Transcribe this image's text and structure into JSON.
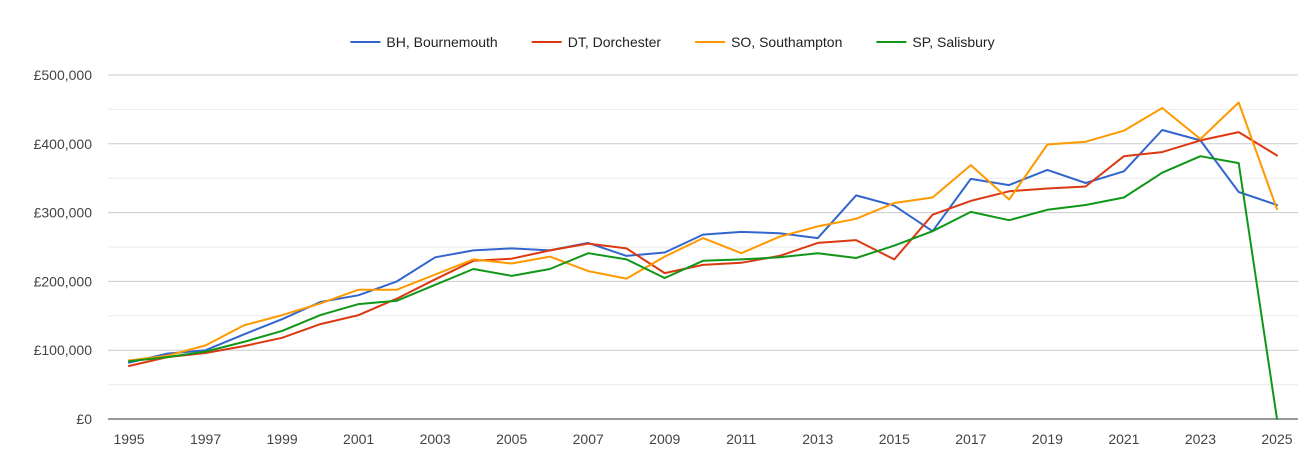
{
  "chart_data": {
    "type": "line",
    "x": [
      1995,
      1996,
      1997,
      1998,
      1999,
      2000,
      2001,
      2002,
      2003,
      2004,
      2005,
      2006,
      2007,
      2008,
      2009,
      2010,
      2011,
      2012,
      2013,
      2014,
      2015,
      2016,
      2017,
      2018,
      2019,
      2020,
      2021,
      2022,
      2023,
      2024,
      2025
    ],
    "x_tick_labels": [
      "1995",
      "1997",
      "1999",
      "2001",
      "2003",
      "2005",
      "2007",
      "2009",
      "2011",
      "2013",
      "2015",
      "2017",
      "2019",
      "2021",
      "2023",
      "2025"
    ],
    "y_tick_labels": [
      "£0",
      "£100,000",
      "£200,000",
      "£300,000",
      "£400,000",
      "£500,000"
    ],
    "ylim": [
      0,
      500000
    ],
    "grid": true,
    "legend_position": "top",
    "series": [
      {
        "name": "BH, Bournemouth",
        "color": "#3366cc",
        "values": [
          82000,
          95000,
          100000,
          123000,
          145000,
          170000,
          180000,
          200000,
          235000,
          245000,
          248000,
          245000,
          256000,
          237000,
          242000,
          268000,
          272000,
          270000,
          263000,
          325000,
          310000,
          273000,
          349000,
          340000,
          362000,
          343000,
          360000,
          420000,
          405000,
          330000,
          311000
        ]
      },
      {
        "name": "DT, Dorchester",
        "color": "#dc3912",
        "values": [
          77000,
          90000,
          96000,
          106000,
          118000,
          138000,
          151000,
          175000,
          203000,
          230000,
          233000,
          245000,
          255000,
          248000,
          212000,
          224000,
          227000,
          237000,
          256000,
          260000,
          232000,
          297000,
          317000,
          331000,
          335000,
          338000,
          382000,
          388000,
          405000,
          417000,
          383000
        ]
      },
      {
        "name": "SO, Southampton",
        "color": "#ff9900",
        "values": [
          85000,
          92000,
          107000,
          136000,
          151000,
          168000,
          188000,
          188000,
          210000,
          232000,
          226000,
          236000,
          215000,
          204000,
          236000,
          263000,
          241000,
          265000,
          280000,
          291000,
          314000,
          322000,
          369000,
          319000,
          399000,
          403000,
          419000,
          452000,
          407000,
          460000,
          305000
        ]
      },
      {
        "name": "SP, Salisbury",
        "color": "#109618",
        "values": [
          84000,
          90000,
          98000,
          112000,
          128000,
          151000,
          167000,
          172000,
          195000,
          218000,
          208000,
          218000,
          241000,
          232000,
          205000,
          230000,
          232000,
          235000,
          241000,
          234000,
          252000,
          273000,
          301000,
          289000,
          304000,
          311000,
          322000,
          358000,
          382000,
          372000,
          0
        ]
      }
    ]
  }
}
